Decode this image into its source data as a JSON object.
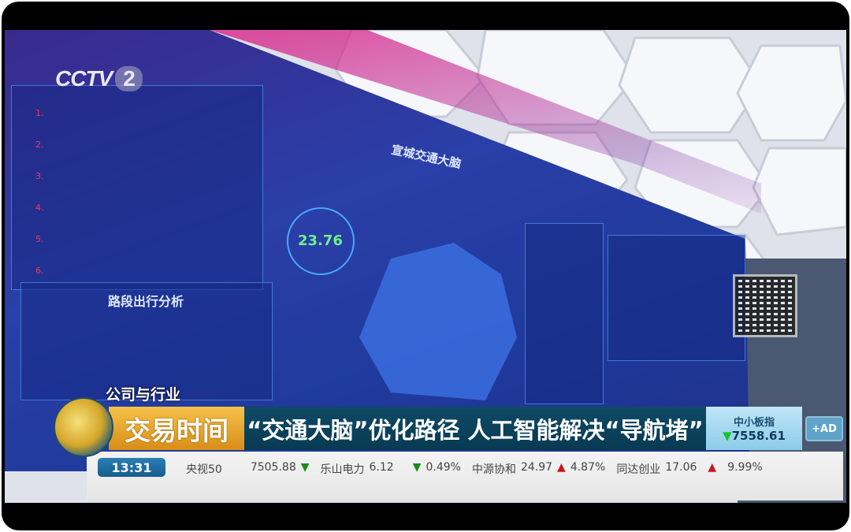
{
  "broadcast": {
    "channel_logo": "CCTV",
    "channel_number": "2",
    "section": "公司与行业",
    "program": "交易时间",
    "headline": "“交通大脑”优化路径 人工智能解决“导航堵”",
    "index": {
      "name": "中小板指",
      "direction": "down",
      "value": "7558.61"
    },
    "ad_button": "+AD",
    "time": "13:31",
    "ticker": [
      {
        "name": "央视50",
        "value": "7505.88",
        "direction": "down"
      },
      {
        "name": "乐山电力",
        "value": "6.12",
        "direction": "down",
        "change": "0.49%"
      },
      {
        "name": "中源协和",
        "value": "24.97",
        "direction": "up",
        "change": "4.87%"
      },
      {
        "name": "同达创业",
        "value": "17.06",
        "direction": "up",
        "change": "9.99%"
      }
    ]
  },
  "dashboard": {
    "title": "宣城交通大脑",
    "panel_title": "路段出行分析",
    "speed_value": "23.76"
  },
  "colors": {
    "gold": "#f0b43c",
    "headline_bg": "#0c4560",
    "up": "#c8161d",
    "down": "#18c22c"
  }
}
